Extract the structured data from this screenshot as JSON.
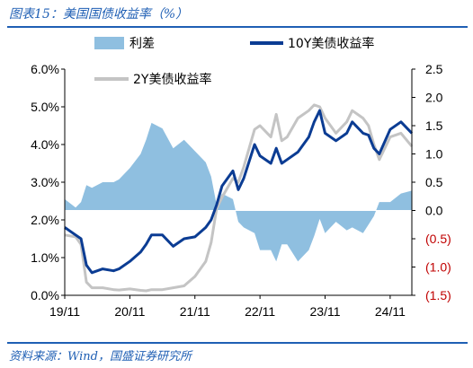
{
  "header": {
    "title": "图表15：美国国债收益率（%）"
  },
  "footer": {
    "source": "资料来源：Wind，国盛证券研究所"
  },
  "colors": {
    "spread": "#8fbfe0",
    "y10": "#0b3c93",
    "y2": "#c4c4c4",
    "title": "#1f5fb4",
    "negative_tick": "#c00000",
    "axis": "#000000"
  },
  "chart_data": {
    "type": "line",
    "title": "图表15：美国国债收益率（%）",
    "xlabel": "",
    "ylabel": "",
    "x_ticks": [
      "19/11",
      "20/11",
      "21/11",
      "22/11",
      "23/11",
      "24/11"
    ],
    "x_tick_dates": [
      "2019-11",
      "2020-11",
      "2021-11",
      "2022-11",
      "2023-11",
      "2024-11"
    ],
    "x_range": [
      "2019-11",
      "2025-03"
    ],
    "y_left_ticks": [
      "0.0%",
      "1.0%",
      "2.0%",
      "3.0%",
      "4.0%",
      "5.0%",
      "6.0%"
    ],
    "y_left_lim": [
      0,
      6
    ],
    "y_right_ticks": [
      "(1.5)",
      "(1.0)",
      "(0.5)",
      "0.0",
      "0.5",
      "1.0",
      "1.5",
      "2.0",
      "2.5"
    ],
    "y_right_lim": [
      -1.5,
      2.5
    ],
    "grid": false,
    "legend": {
      "placement": "top",
      "entries": [
        "利差",
        "10Y美债收益率",
        "2Y美债收益率"
      ]
    },
    "x": [
      "2019-11",
      "2020-01",
      "2020-02",
      "2020-03",
      "2020-04",
      "2020-06",
      "2020-08",
      "2020-09",
      "2020-11",
      "2021-01",
      "2021-02",
      "2021-03",
      "2021-05",
      "2021-07",
      "2021-09",
      "2021-11",
      "2022-01",
      "2022-02",
      "2022-03",
      "2022-04",
      "2022-06",
      "2022-07",
      "2022-08",
      "2022-10",
      "2022-11",
      "2023-01",
      "2023-02",
      "2023-03",
      "2023-04",
      "2023-06",
      "2023-08",
      "2023-09",
      "2023-10",
      "2023-11",
      "2024-01",
      "2024-03",
      "2024-04",
      "2024-06",
      "2024-07",
      "2024-08",
      "2024-09",
      "2024-11",
      "2025-01",
      "2025-03"
    ],
    "series": [
      {
        "name": "10Y美债收益率",
        "axis": "left",
        "values": [
          1.8,
          1.6,
          1.5,
          0.8,
          0.6,
          0.7,
          0.65,
          0.7,
          0.9,
          1.15,
          1.35,
          1.6,
          1.6,
          1.3,
          1.5,
          1.55,
          1.8,
          2.0,
          2.4,
          2.9,
          3.3,
          2.8,
          3.1,
          4.0,
          3.7,
          3.5,
          3.9,
          3.5,
          3.6,
          3.8,
          4.2,
          4.6,
          4.9,
          4.3,
          4.1,
          4.3,
          4.6,
          4.3,
          4.25,
          3.9,
          3.75,
          4.4,
          4.6,
          4.3
        ]
      },
      {
        "name": "2Y美债收益率",
        "axis": "left",
        "values": [
          1.6,
          1.55,
          1.35,
          0.35,
          0.2,
          0.2,
          0.15,
          0.14,
          0.17,
          0.13,
          0.12,
          0.15,
          0.15,
          0.2,
          0.25,
          0.5,
          0.9,
          1.4,
          2.3,
          2.6,
          3.1,
          3.0,
          3.4,
          4.4,
          4.5,
          4.2,
          4.8,
          4.1,
          4.2,
          4.7,
          4.9,
          5.05,
          5.0,
          4.7,
          4.3,
          4.6,
          4.9,
          4.7,
          4.5,
          4.0,
          3.6,
          4.2,
          4.3,
          3.95
        ]
      },
      {
        "name": "利差",
        "axis": "right",
        "type": "area",
        "values": [
          0.2,
          0.05,
          0.15,
          0.45,
          0.4,
          0.5,
          0.5,
          0.55,
          0.75,
          1.0,
          1.25,
          1.55,
          1.45,
          1.1,
          1.25,
          1.05,
          0.85,
          0.6,
          0.1,
          0.3,
          0.2,
          -0.2,
          -0.3,
          -0.4,
          -0.7,
          -0.7,
          -0.9,
          -0.6,
          -0.6,
          -0.9,
          -0.7,
          -0.45,
          -0.15,
          -0.4,
          -0.2,
          -0.35,
          -0.3,
          -0.4,
          -0.25,
          -0.1,
          0.15,
          0.15,
          0.3,
          0.35
        ]
      }
    ]
  }
}
